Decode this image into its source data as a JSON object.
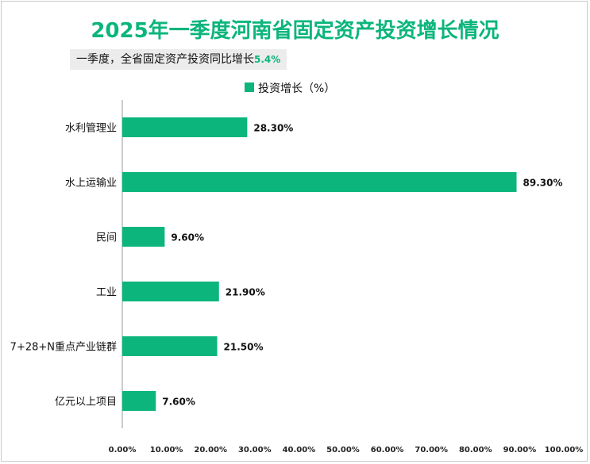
{
  "chart_data": {
    "type": "bar",
    "orientation": "horizontal",
    "title": "2025年一季度河南省固定资产投资增长情况",
    "subtitle": {
      "text": "一季度，全省固定资产投资同比增长",
      "highlight": "5.4%"
    },
    "categories": [
      "水利管理业",
      "水上运输业",
      "民间",
      "工业",
      "7+28+N重点产业链群",
      "亿元以上项目"
    ],
    "series": [
      {
        "name": "投资增长（%）",
        "values": [
          28.3,
          89.3,
          9.6,
          21.9,
          21.5,
          7.6
        ],
        "labels": [
          "28.30%",
          "89.30%",
          "9.60%",
          "21.90%",
          "21.50%",
          "7.60%"
        ]
      }
    ],
    "xlim": [
      0,
      100
    ],
    "xticks": [
      "0.00%",
      "10.00%",
      "20.00%",
      "30.00%",
      "40.00%",
      "50.00%",
      "60.00%",
      "70.00%",
      "80.00%",
      "90.00%",
      "100.00%"
    ],
    "legend_position": "top",
    "grid": false,
    "colors": {
      "bar": "#0bb57c",
      "title": "#0bb57c"
    }
  }
}
